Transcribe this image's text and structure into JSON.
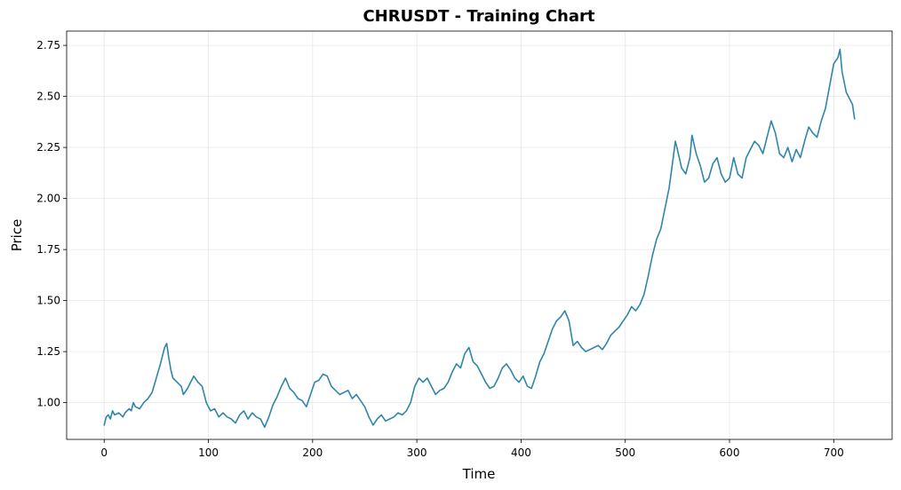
{
  "chart_data": {
    "type": "line",
    "title": "CHRUSDT - Training Chart",
    "xlabel": "Time",
    "ylabel": "Price",
    "xlim": [
      -36,
      756
    ],
    "ylim": [
      0.82,
      2.82
    ],
    "x_ticks": [
      0,
      100,
      200,
      300,
      400,
      500,
      600,
      700
    ],
    "y_ticks": [
      1.0,
      1.25,
      1.5,
      1.75,
      2.0,
      2.25,
      2.5,
      2.75
    ],
    "x_tick_labels": [
      "0",
      "100",
      "200",
      "300",
      "400",
      "500",
      "600",
      "700"
    ],
    "y_tick_labels": [
      "1.00",
      "1.25",
      "1.50",
      "1.75",
      "2.00",
      "2.25",
      "2.50",
      "2.75"
    ],
    "grid": true,
    "legend": "none",
    "series": [
      {
        "color": "#2e86ab",
        "points": [
          [
            0,
            0.89
          ],
          [
            2,
            0.93
          ],
          [
            4,
            0.94
          ],
          [
            6,
            0.92
          ],
          [
            8,
            0.96
          ],
          [
            10,
            0.94
          ],
          [
            14,
            0.95
          ],
          [
            18,
            0.93
          ],
          [
            20,
            0.95
          ],
          [
            24,
            0.97
          ],
          [
            26,
            0.96
          ],
          [
            28,
            1.0
          ],
          [
            30,
            0.98
          ],
          [
            34,
            0.97
          ],
          [
            38,
            1.0
          ],
          [
            42,
            1.02
          ],
          [
            46,
            1.05
          ],
          [
            50,
            1.12
          ],
          [
            54,
            1.19
          ],
          [
            56,
            1.23
          ],
          [
            58,
            1.27
          ],
          [
            60,
            1.29
          ],
          [
            62,
            1.22
          ],
          [
            64,
            1.16
          ],
          [
            66,
            1.12
          ],
          [
            70,
            1.1
          ],
          [
            74,
            1.08
          ],
          [
            76,
            1.04
          ],
          [
            80,
            1.07
          ],
          [
            84,
            1.11
          ],
          [
            86,
            1.13
          ],
          [
            90,
            1.1
          ],
          [
            94,
            1.08
          ],
          [
            98,
            1.0
          ],
          [
            102,
            0.96
          ],
          [
            106,
            0.97
          ],
          [
            110,
            0.93
          ],
          [
            114,
            0.95
          ],
          [
            118,
            0.93
          ],
          [
            122,
            0.92
          ],
          [
            126,
            0.9
          ],
          [
            130,
            0.94
          ],
          [
            134,
            0.96
          ],
          [
            138,
            0.92
          ],
          [
            142,
            0.95
          ],
          [
            146,
            0.93
          ],
          [
            150,
            0.92
          ],
          [
            154,
            0.88
          ],
          [
            158,
            0.93
          ],
          [
            162,
            0.99
          ],
          [
            166,
            1.03
          ],
          [
            170,
            1.08
          ],
          [
            174,
            1.12
          ],
          [
            178,
            1.07
          ],
          [
            182,
            1.05
          ],
          [
            186,
            1.02
          ],
          [
            190,
            1.01
          ],
          [
            194,
            0.98
          ],
          [
            198,
            1.04
          ],
          [
            202,
            1.1
          ],
          [
            206,
            1.11
          ],
          [
            210,
            1.14
          ],
          [
            214,
            1.13
          ],
          [
            218,
            1.08
          ],
          [
            222,
            1.06
          ],
          [
            226,
            1.04
          ],
          [
            230,
            1.05
          ],
          [
            234,
            1.06
          ],
          [
            238,
            1.02
          ],
          [
            242,
            1.04
          ],
          [
            246,
            1.01
          ],
          [
            250,
            0.98
          ],
          [
            254,
            0.93
          ],
          [
            258,
            0.89
          ],
          [
            262,
            0.92
          ],
          [
            266,
            0.94
          ],
          [
            270,
            0.91
          ],
          [
            274,
            0.92
          ],
          [
            278,
            0.93
          ],
          [
            282,
            0.95
          ],
          [
            286,
            0.94
          ],
          [
            290,
            0.96
          ],
          [
            294,
            1.0
          ],
          [
            298,
            1.08
          ],
          [
            302,
            1.12
          ],
          [
            306,
            1.1
          ],
          [
            310,
            1.12
          ],
          [
            314,
            1.08
          ],
          [
            318,
            1.04
          ],
          [
            322,
            1.06
          ],
          [
            326,
            1.07
          ],
          [
            330,
            1.1
          ],
          [
            334,
            1.15
          ],
          [
            338,
            1.19
          ],
          [
            342,
            1.17
          ],
          [
            346,
            1.24
          ],
          [
            350,
            1.27
          ],
          [
            354,
            1.2
          ],
          [
            358,
            1.18
          ],
          [
            362,
            1.14
          ],
          [
            366,
            1.1
          ],
          [
            370,
            1.07
          ],
          [
            374,
            1.08
          ],
          [
            378,
            1.12
          ],
          [
            382,
            1.17
          ],
          [
            386,
            1.19
          ],
          [
            390,
            1.16
          ],
          [
            394,
            1.12
          ],
          [
            398,
            1.1
          ],
          [
            402,
            1.13
          ],
          [
            406,
            1.08
          ],
          [
            410,
            1.07
          ],
          [
            414,
            1.13
          ],
          [
            418,
            1.2
          ],
          [
            422,
            1.24
          ],
          [
            426,
            1.3
          ],
          [
            430,
            1.36
          ],
          [
            434,
            1.4
          ],
          [
            438,
            1.42
          ],
          [
            442,
            1.45
          ],
          [
            446,
            1.4
          ],
          [
            450,
            1.28
          ],
          [
            454,
            1.3
          ],
          [
            458,
            1.27
          ],
          [
            462,
            1.25
          ],
          [
            466,
            1.26
          ],
          [
            470,
            1.27
          ],
          [
            474,
            1.28
          ],
          [
            478,
            1.26
          ],
          [
            482,
            1.29
          ],
          [
            486,
            1.33
          ],
          [
            490,
            1.35
          ],
          [
            494,
            1.37
          ],
          [
            498,
            1.4
          ],
          [
            502,
            1.43
          ],
          [
            506,
            1.47
          ],
          [
            510,
            1.45
          ],
          [
            514,
            1.48
          ],
          [
            518,
            1.53
          ],
          [
            522,
            1.62
          ],
          [
            526,
            1.72
          ],
          [
            530,
            1.8
          ],
          [
            534,
            1.85
          ],
          [
            538,
            1.95
          ],
          [
            542,
            2.05
          ],
          [
            546,
            2.2
          ],
          [
            548,
            2.28
          ],
          [
            550,
            2.24
          ],
          [
            554,
            2.15
          ],
          [
            558,
            2.12
          ],
          [
            562,
            2.2
          ],
          [
            564,
            2.31
          ],
          [
            568,
            2.22
          ],
          [
            572,
            2.16
          ],
          [
            576,
            2.08
          ],
          [
            580,
            2.1
          ],
          [
            584,
            2.17
          ],
          [
            588,
            2.2
          ],
          [
            592,
            2.12
          ],
          [
            596,
            2.08
          ],
          [
            600,
            2.1
          ],
          [
            604,
            2.2
          ],
          [
            608,
            2.12
          ],
          [
            612,
            2.1
          ],
          [
            616,
            2.2
          ],
          [
            620,
            2.24
          ],
          [
            624,
            2.28
          ],
          [
            628,
            2.26
          ],
          [
            632,
            2.22
          ],
          [
            636,
            2.3
          ],
          [
            640,
            2.38
          ],
          [
            644,
            2.32
          ],
          [
            648,
            2.22
          ],
          [
            652,
            2.2
          ],
          [
            656,
            2.25
          ],
          [
            660,
            2.18
          ],
          [
            664,
            2.24
          ],
          [
            668,
            2.2
          ],
          [
            672,
            2.28
          ],
          [
            676,
            2.35
          ],
          [
            680,
            2.32
          ],
          [
            684,
            2.3
          ],
          [
            688,
            2.38
          ],
          [
            692,
            2.44
          ],
          [
            696,
            2.55
          ],
          [
            700,
            2.66
          ],
          [
            704,
            2.69
          ],
          [
            706,
            2.73
          ],
          [
            708,
            2.62
          ],
          [
            712,
            2.52
          ],
          [
            716,
            2.48
          ],
          [
            718,
            2.46
          ],
          [
            720,
            2.39
          ]
        ]
      }
    ]
  }
}
